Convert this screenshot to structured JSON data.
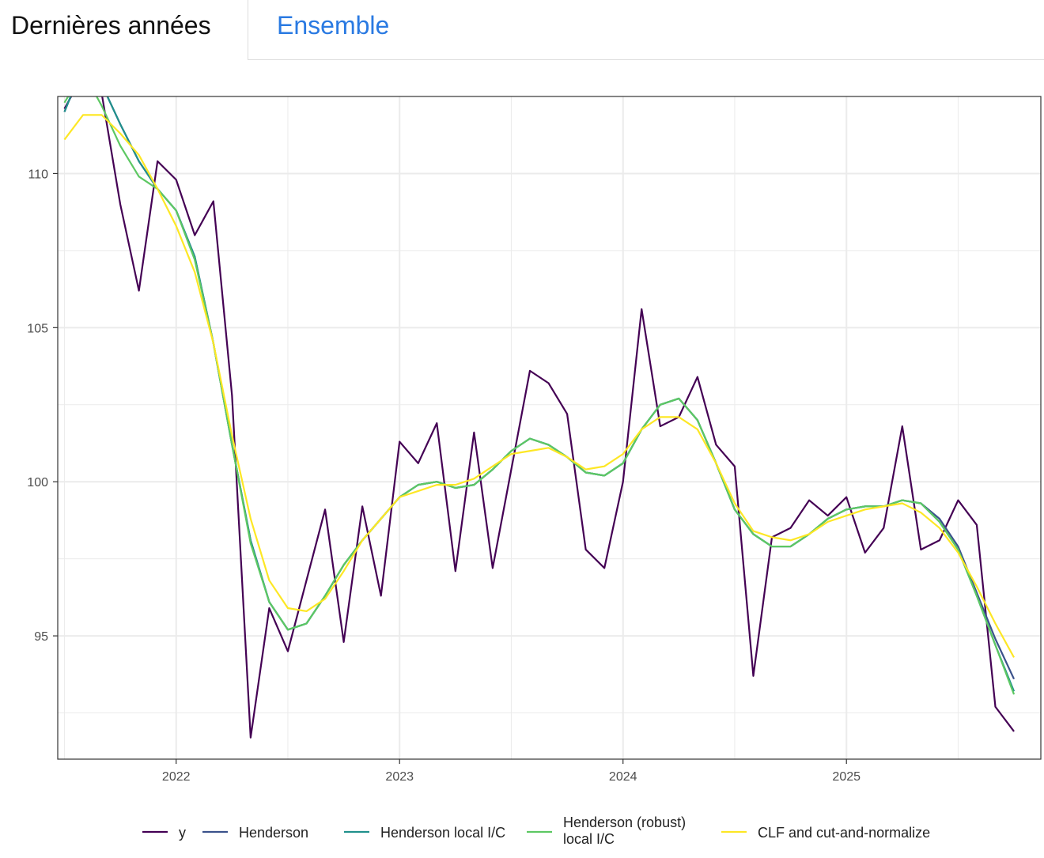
{
  "tabs": [
    {
      "label": "Dernières années",
      "active": true
    },
    {
      "label": "Ensemble",
      "active": false
    }
  ],
  "chart_data": {
    "type": "line",
    "title": "",
    "xlabel": "",
    "ylabel": "",
    "x_start": 2021.5,
    "x_step": 0.08333,
    "xlim": [
      2021.47,
      2025.87
    ],
    "ylim": [
      91.0,
      112.5
    ],
    "x_ticks": [
      2022,
      2023,
      2024,
      2025
    ],
    "x_tick_labels": [
      "2022",
      "2023",
      "2024",
      "2025"
    ],
    "y_ticks": [
      95,
      100,
      105,
      110
    ],
    "y_tick_labels": [
      "95",
      "100",
      "105",
      "110"
    ],
    "grid": true,
    "legend_position": "bottom",
    "series": [
      {
        "name": "y",
        "color": "#440154",
        "values": [
          112.1,
          113.2,
          112.6,
          109.0,
          106.2,
          110.4,
          109.8,
          108.0,
          109.1,
          102.8,
          91.7,
          95.9,
          94.5,
          96.8,
          99.1,
          94.8,
          99.2,
          96.3,
          101.3,
          100.6,
          101.9,
          97.1,
          101.6,
          97.2,
          100.4,
          103.6,
          103.2,
          102.2,
          97.8,
          97.2,
          100.0,
          105.6,
          101.8,
          102.1,
          103.4,
          101.2,
          100.5,
          93.7,
          98.2,
          98.5,
          99.4,
          98.9,
          99.5,
          97.7,
          98.5,
          101.8,
          97.8,
          98.1,
          99.4,
          98.6,
          92.7,
          91.9
        ]
      },
      {
        "name": "Henderson",
        "color": "#3b528b",
        "values": [
          112.0,
          113.5,
          112.9,
          111.6,
          110.4,
          109.5,
          108.8,
          107.3,
          104.5,
          101.2,
          98.1,
          96.1,
          95.2,
          95.4,
          96.3,
          97.3,
          98.1,
          98.8,
          99.5,
          99.9,
          100.0,
          99.8,
          99.9,
          100.4,
          101.0,
          101.4,
          101.2,
          100.8,
          100.3,
          100.2,
          100.6,
          101.7,
          102.5,
          102.7,
          102.0,
          100.6,
          99.1,
          98.3,
          97.9,
          97.9,
          98.3,
          98.8,
          99.1,
          99.2,
          99.2,
          99.4,
          99.3,
          98.8,
          97.9,
          96.4,
          94.9,
          93.6
        ]
      },
      {
        "name": "Henderson local I/C",
        "color": "#21908c",
        "values": [
          112.0,
          113.5,
          112.9,
          111.6,
          110.4,
          109.5,
          108.8,
          107.3,
          104.5,
          101.2,
          98.1,
          96.1,
          95.2,
          95.4,
          96.3,
          97.3,
          98.1,
          98.8,
          99.5,
          99.9,
          100.0,
          99.8,
          99.9,
          100.4,
          101.0,
          101.4,
          101.2,
          100.8,
          100.3,
          100.2,
          100.6,
          101.7,
          102.5,
          102.7,
          102.0,
          100.6,
          99.1,
          98.3,
          97.9,
          97.9,
          98.3,
          98.8,
          99.1,
          99.2,
          99.2,
          99.4,
          99.3,
          98.7,
          97.8,
          96.3,
          94.7,
          93.2
        ]
      },
      {
        "name": "Henderson (robust)\nlocal I/C",
        "color": "#5dc863",
        "values": [
          112.3,
          113.3,
          112.2,
          110.9,
          109.9,
          109.5,
          108.8,
          107.2,
          104.5,
          101.2,
          98.0,
          96.1,
          95.2,
          95.4,
          96.3,
          97.3,
          98.1,
          98.8,
          99.5,
          99.9,
          100.0,
          99.8,
          99.9,
          100.4,
          101.0,
          101.4,
          101.2,
          100.8,
          100.3,
          100.2,
          100.6,
          101.7,
          102.5,
          102.7,
          102.0,
          100.6,
          99.1,
          98.3,
          97.9,
          97.9,
          98.3,
          98.8,
          99.1,
          99.2,
          99.2,
          99.4,
          99.3,
          98.7,
          97.8,
          96.3,
          94.7,
          93.1
        ]
      },
      {
        "name": "CLF and cut-and-normalize",
        "color": "#fde725",
        "values": [
          111.1,
          111.9,
          111.9,
          111.3,
          110.6,
          109.5,
          108.3,
          106.8,
          104.5,
          101.5,
          98.8,
          96.8,
          95.9,
          95.8,
          96.2,
          97.1,
          98.1,
          98.8,
          99.5,
          99.7,
          99.9,
          99.9,
          100.1,
          100.5,
          100.9,
          101.0,
          101.1,
          100.8,
          100.4,
          100.5,
          100.9,
          101.7,
          102.1,
          102.1,
          101.7,
          100.6,
          99.3,
          98.4,
          98.2,
          98.1,
          98.3,
          98.7,
          98.9,
          99.1,
          99.2,
          99.3,
          99.0,
          98.5,
          97.7,
          96.6,
          95.4,
          94.3
        ]
      }
    ]
  }
}
